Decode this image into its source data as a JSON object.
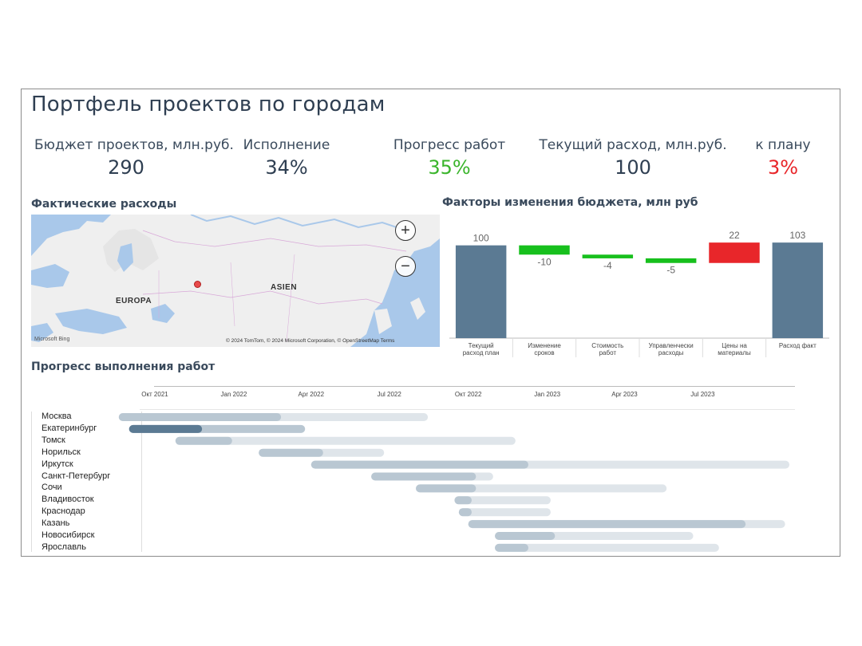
{
  "title": "Портфель проектов по городам",
  "kpis": [
    {
      "label": "Бюджет проектов, млн.руб.",
      "value": "290",
      "color": "#2f3f52"
    },
    {
      "label": "Исполнение",
      "value": "34%",
      "color": "#2f3f52"
    },
    {
      "label": "Прогресс работ",
      "value": "35%",
      "color": "#3bb52c"
    },
    {
      "label": "Текущий расход, млн.руб.",
      "value": "100",
      "color": "#2f3f52"
    },
    {
      "label": "к плану",
      "value": "3%",
      "color": "#e8262a"
    }
  ],
  "map": {
    "title": "Фактические расходы",
    "labels": {
      "europe": "EUROPA",
      "asia": "ASIEN"
    },
    "zoom_in": "+",
    "zoom_out": "−",
    "logo": "Microsoft Bing",
    "attribution": "© 2024 TomTom, © 2024 Microsoft Corporation, © OpenStreetMap  Terms",
    "marker_color": "#e84a4a"
  },
  "chart_data": [
    {
      "type": "bar",
      "title": "Факторы изменения бюджета, млн руб",
      "subtype": "waterfall",
      "categories": [
        "Текущий расход план",
        "Изменение сроков",
        "Стоимость работ",
        "Управленческие расходы",
        "Цены на материалы",
        "Расход факт"
      ],
      "category_labels": [
        [
          "Текущий",
          "расход план"
        ],
        [
          "Изменение",
          "сроков"
        ],
        [
          "Стоимость",
          "работ"
        ],
        [
          "Управленчески",
          "расходы"
        ],
        [
          "Цены на",
          "материалы"
        ],
        [
          "Расход факт"
        ]
      ],
      "values": [
        100,
        -10,
        -4,
        -5,
        22,
        103
      ],
      "value_labels": [
        "100",
        "-10",
        "-4",
        "-5",
        "22",
        "103"
      ],
      "kinds": [
        "total",
        "delta",
        "delta",
        "delta",
        "delta",
        "total"
      ],
      "colors": {
        "total": "#5b7a93",
        "decrease": "#17c01d",
        "increase": "#e8262a"
      },
      "ylim": [
        0,
        110
      ]
    },
    {
      "type": "bar",
      "subtype": "gantt",
      "title": "Прогресс выполнения работ",
      "ticks": [
        "Окт 2021",
        "Jan 2022",
        "Apr 2022",
        "Jul 2022",
        "Окт 2022",
        "Jan 2023",
        "Apr 2023",
        "Jul 2023"
      ],
      "tick_dates": [
        "2021-10-01",
        "2022-01-01",
        "2022-04-01",
        "2022-07-01",
        "2022-10-01",
        "2023-01-01",
        "2023-04-01",
        "2023-07-01"
      ],
      "x_range": [
        "2021-07-01",
        "2023-12-01"
      ],
      "colors": {
        "progress": "#b9c7d2",
        "remaining": "#dfe5ea",
        "selected_progress": "#5b7a93",
        "selected_remaining": "#b9c7d2"
      },
      "tasks": [
        {
          "city": "Москва",
          "start": "2021-08-20",
          "end": "2022-08-15",
          "progress_end": "2022-02-25",
          "selected": false
        },
        {
          "city": "Екатеринбург",
          "start": "2021-09-01",
          "end": "2022-03-25",
          "progress_end": "2021-11-25",
          "selected": true
        },
        {
          "city": "Томск",
          "start": "2021-10-25",
          "end": "2022-11-25",
          "progress_end": "2021-12-30",
          "selected": false
        },
        {
          "city": "Норильск",
          "start": "2022-01-30",
          "end": "2022-06-25",
          "progress_end": "2022-04-15",
          "selected": false
        },
        {
          "city": "Иркутск",
          "start": "2022-04-01",
          "end": "2023-10-10",
          "progress_end": "2022-12-10",
          "selected": false
        },
        {
          "city": "Санкт-Петербург",
          "start": "2022-06-10",
          "end": "2022-10-30",
          "progress_end": "2022-10-10",
          "selected": false
        },
        {
          "city": "Сочи",
          "start": "2022-08-01",
          "end": "2023-05-20",
          "progress_end": "2022-10-10",
          "selected": false
        },
        {
          "city": "Владивосток",
          "start": "2022-09-15",
          "end": "2023-01-05",
          "progress_end": "2022-10-05",
          "selected": false
        },
        {
          "city": "Краснодар",
          "start": "2022-09-20",
          "end": "2023-01-05",
          "progress_end": "2022-10-05",
          "selected": false
        },
        {
          "city": "Казань",
          "start": "2022-10-01",
          "end": "2023-10-05",
          "progress_end": "2023-08-20",
          "selected": false
        },
        {
          "city": "Новосибирск",
          "start": "2022-11-01",
          "end": "2023-06-20",
          "progress_end": "2023-01-10",
          "selected": false
        },
        {
          "city": "Ярославль",
          "start": "2022-11-01",
          "end": "2023-07-20",
          "progress_end": "2022-12-10",
          "selected": false
        }
      ]
    }
  ]
}
